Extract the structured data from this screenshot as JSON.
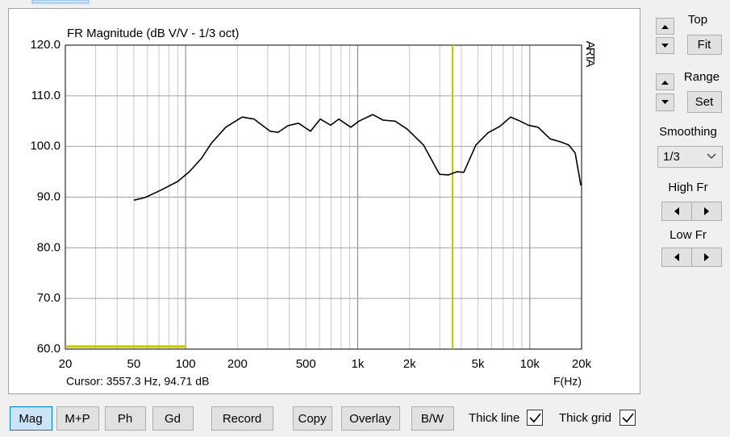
{
  "chart_data": {
    "type": "line",
    "title": "FR Magnitude (dB V/V - 1/3 oct)",
    "side_label": "ARTA",
    "x_label": "F(Hz)",
    "log_x": true,
    "grid": true,
    "xlim": [
      20,
      20000
    ],
    "ylim": [
      60,
      120
    ],
    "xticks": [
      20,
      50,
      100,
      200,
      500,
      {
        "value": 1000,
        "label": "1k"
      },
      {
        "value": 2000,
        "label": "2k"
      },
      {
        "value": 5000,
        "label": "5k"
      },
      {
        "value": 10000,
        "label": "10k"
      },
      {
        "value": 20000,
        "label": "20k"
      }
    ],
    "x_minor_grid": [
      30,
      40,
      60,
      70,
      80,
      90,
      300,
      400,
      600,
      700,
      800,
      900,
      3000,
      4000,
      6000,
      7000,
      8000,
      9000
    ],
    "yticks": [
      {
        "value": 60,
        "label": "60.0"
      },
      {
        "value": 70,
        "label": "70.0"
      },
      {
        "value": 80,
        "label": "80.0"
      },
      {
        "value": 90,
        "label": "90.0"
      },
      {
        "value": 100,
        "label": "100.0"
      },
      {
        "value": 110,
        "label": "110.0"
      },
      {
        "value": 120,
        "label": "120.0"
      }
    ],
    "color": "#000000",
    "x": [
      50,
      58,
      72,
      90,
      105,
      124,
      141,
      171,
      213,
      250,
      310,
      345,
      393,
      453,
      532,
      606,
      697,
      776,
      912,
      1016,
      1222,
      1406,
      1652,
      1944,
      2412,
      2990,
      3372,
      3752,
      4137,
      4863,
      5718,
      6723,
      7737,
      8808,
      9814,
      11175,
      13130,
      15100,
      16830,
      18360,
      19800
    ],
    "values": [
      89.4,
      89.9,
      91.4,
      93.1,
      95.0,
      97.7,
      100.6,
      103.8,
      105.8,
      105.4,
      103.0,
      102.8,
      104.1,
      104.6,
      103.0,
      105.4,
      104.2,
      105.4,
      103.8,
      105.0,
      106.3,
      105.2,
      105.0,
      103.4,
      100.3,
      94.5,
      94.4,
      95.0,
      94.9,
      100.3,
      102.7,
      104.0,
      105.8,
      105.0,
      104.2,
      103.8,
      101.5,
      100.9,
      100.3,
      98.7,
      92.3
    ],
    "band_line": {
      "x": [
        20,
        100
      ],
      "values": [
        60.5,
        60.5
      ],
      "color": "#c8c400"
    },
    "cursor": {
      "x": 3557.3,
      "color": "#c8c400",
      "label": "Cursor: 3557.3 Hz, 94.71 dB"
    }
  },
  "right_panel": {
    "top_label": "Top",
    "fit_button": "Fit",
    "range_label": "Range",
    "set_button": "Set",
    "smoothing_label": "Smoothing",
    "smoothing_value": "1/3",
    "high_fr_label": "High Fr",
    "low_fr_label": "Low Fr"
  },
  "bottom_bar": {
    "buttons": [
      "Mag",
      "M+P",
      "Ph",
      "Gd",
      "Record",
      "Copy",
      "Overlay",
      "B/W"
    ],
    "selected_index": 0,
    "checkboxes": [
      {
        "label": "Thick line",
        "checked": true
      },
      {
        "label": "Thick grid",
        "checked": true
      }
    ]
  }
}
